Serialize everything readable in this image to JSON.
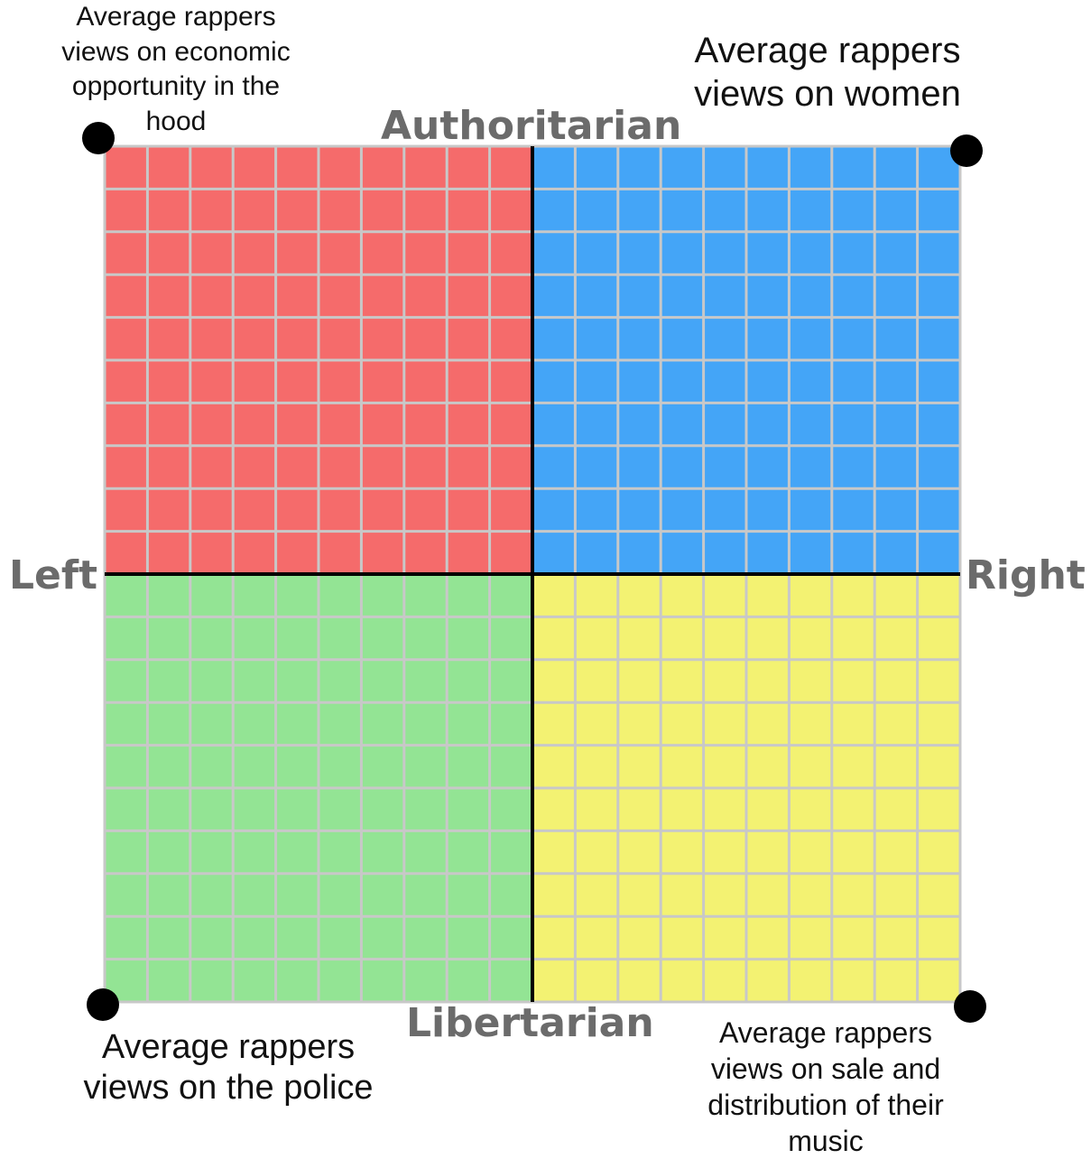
{
  "compass": {
    "grid_divisions_per_side": 20,
    "quadrants": {
      "top_left": {
        "color": "#f56b6b"
      },
      "top_right": {
        "color": "#44a5f7"
      },
      "bottom_left": {
        "color": "#93e494"
      },
      "bottom_right": {
        "color": "#f3f272"
      }
    },
    "grid_line_color": "#c8c8c8",
    "axis_color": "#000000"
  },
  "axes": {
    "top": "Authoritarian",
    "bottom": "Libertarian",
    "left": "Left",
    "right": "Right"
  },
  "corner_notes": {
    "top_left": [
      "Average rappers",
      "views on economic",
      "opportunity in the",
      "hood"
    ],
    "top_right": [
      "Average rappers",
      "views on women"
    ],
    "bottom_left": [
      "Average rappers",
      "views on the police"
    ],
    "bottom_right": [
      "Average rappers",
      "views on sale and",
      "distribution of their",
      "music"
    ]
  }
}
